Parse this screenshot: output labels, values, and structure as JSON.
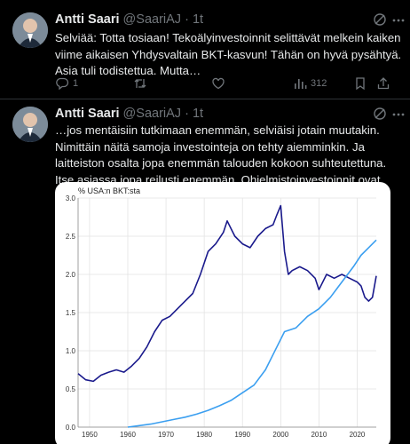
{
  "colors": {
    "background": "#000000",
    "text": "#e7e9ea",
    "muted": "#71767b",
    "series_dark": "#1a1a8c",
    "series_light": "#3b9ff0"
  },
  "tweets": [
    {
      "author_name": "Antti Saari",
      "handle": "@SaariAJ",
      "separator": "·",
      "time": "1t",
      "text": "Selviää: Totta tosiaan! Tekoälyinvestoinnit selittävät melkein kaiken viime aikaisen Yhdysvaltain BKT-kasvun! Tähän on hyvä pysähtyä. Asia tuli todistettua. Mutta…",
      "reply_count": "1",
      "views": "312",
      "icons": [
        "grok-icon",
        "more-icon",
        "reply-icon",
        "retweet-icon",
        "like-icon",
        "views-icon",
        "bookmark-icon",
        "share-icon"
      ]
    },
    {
      "author_name": "Antti Saari",
      "handle": "@SaariAJ",
      "separator": "·",
      "time": "1t",
      "text": "…jos mentäisiin tutkimaan enemmän, selviäisi jotain muutakin. Nimittäin näitä samoja investointeja on tehty aiemminkin. Ja laitteiston osalta jopa enemmän talouden kokoon suhteutettuna. Itse asiassa jopa reilusti enemmän. Ohjelmistoinvestoinnit ovat kyllä jatkaneet kasvuaan."
    }
  ],
  "chart_data": {
    "type": "line",
    "ylabel": "% USA:n BKT:sta",
    "xlim": [
      1947,
      2025
    ],
    "ylim": [
      0,
      3.0
    ],
    "x_ticks": [
      1950,
      1960,
      1970,
      1980,
      1990,
      2000,
      2010,
      2020
    ],
    "y_ticks": [
      "0.0",
      "0.5",
      "1.0",
      "1.5",
      "2.0",
      "2.5",
      "3.0"
    ],
    "grid": true,
    "series": [
      {
        "color": "#1a1a8c",
        "x": [
          1947,
          1949,
          1951,
          1953,
          1955,
          1957,
          1959,
          1961,
          1963,
          1965,
          1967,
          1969,
          1971,
          1973,
          1975,
          1977,
          1979,
          1981,
          1983,
          1985,
          1986,
          1988,
          1990,
          1992,
          1994,
          1996,
          1998,
          1999,
          2000,
          2001,
          2002,
          2003,
          2005,
          2007,
          2009,
          2010,
          2012,
          2014,
          2016,
          2018,
          2020,
          2021,
          2022,
          2023,
          2024,
          2025
        ],
        "y": [
          0.7,
          0.62,
          0.6,
          0.68,
          0.72,
          0.75,
          0.72,
          0.8,
          0.9,
          1.05,
          1.25,
          1.4,
          1.45,
          1.55,
          1.65,
          1.75,
          2.0,
          2.3,
          2.4,
          2.55,
          2.7,
          2.5,
          2.4,
          2.35,
          2.5,
          2.6,
          2.65,
          2.78,
          2.9,
          2.3,
          2.0,
          2.05,
          2.1,
          2.05,
          1.95,
          1.8,
          2.0,
          1.95,
          2.0,
          1.95,
          1.9,
          1.85,
          1.7,
          1.65,
          1.7,
          1.98
        ]
      },
      {
        "color": "#3b9ff0",
        "x": [
          1960,
          1963,
          1966,
          1969,
          1972,
          1975,
          1978,
          1981,
          1984,
          1987,
          1990,
          1993,
          1996,
          1999,
          2001,
          2004,
          2007,
          2010,
          2013,
          2016,
          2019,
          2021,
          2023,
          2025
        ],
        "y": [
          0.0,
          0.02,
          0.04,
          0.07,
          0.1,
          0.13,
          0.17,
          0.22,
          0.28,
          0.35,
          0.45,
          0.55,
          0.75,
          1.05,
          1.25,
          1.3,
          1.45,
          1.55,
          1.7,
          1.9,
          2.1,
          2.25,
          2.35,
          2.45
        ]
      }
    ]
  }
}
